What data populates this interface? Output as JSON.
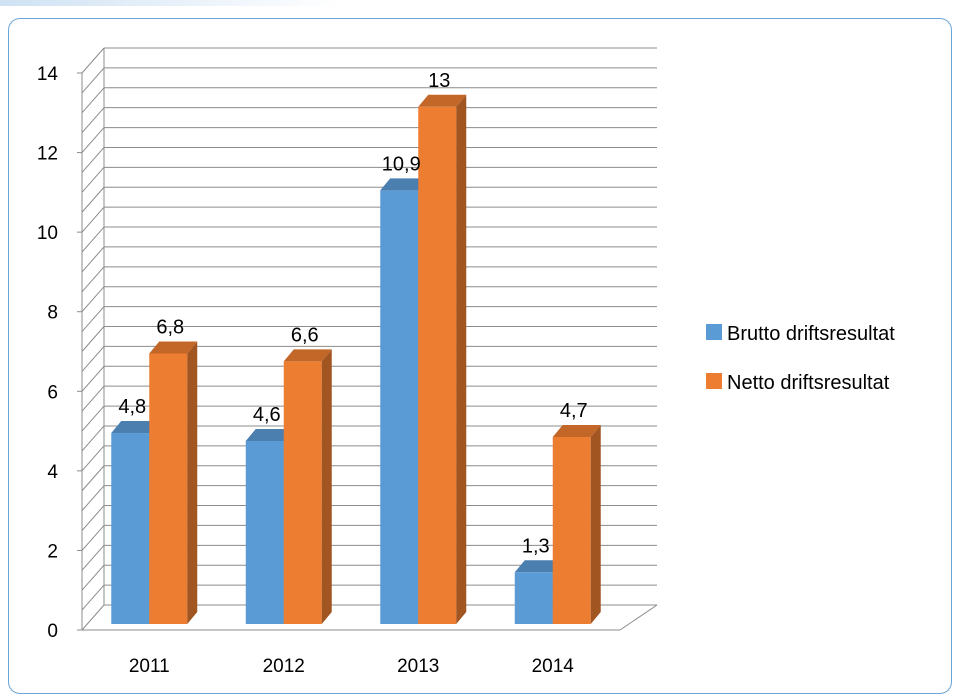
{
  "chart_data": {
    "type": "bar",
    "title": "",
    "xlabel": "",
    "ylabel": "",
    "categories": [
      "2011",
      "2012",
      "2013",
      "2014"
    ],
    "series": [
      {
        "name": "Brutto driftsresultat",
        "values": [
          4.8,
          4.6,
          10.9,
          1.3
        ],
        "labels": [
          "4,8",
          "4,6",
          "10,9",
          "1,3"
        ],
        "color": "#5b9bd5"
      },
      {
        "name": "Netto driftsresultat",
        "values": [
          6.8,
          6.6,
          13,
          4.7
        ],
        "labels": [
          "6,8",
          "6,6",
          "13",
          "4,7"
        ],
        "color": "#ed7d31"
      }
    ],
    "ylim": [
      0,
      14
    ],
    "yticks": [
      "0",
      "2",
      "4",
      "6",
      "8",
      "10",
      "12",
      "14"
    ],
    "grid": true,
    "legend": "right",
    "style": "3d-clustered-column"
  }
}
